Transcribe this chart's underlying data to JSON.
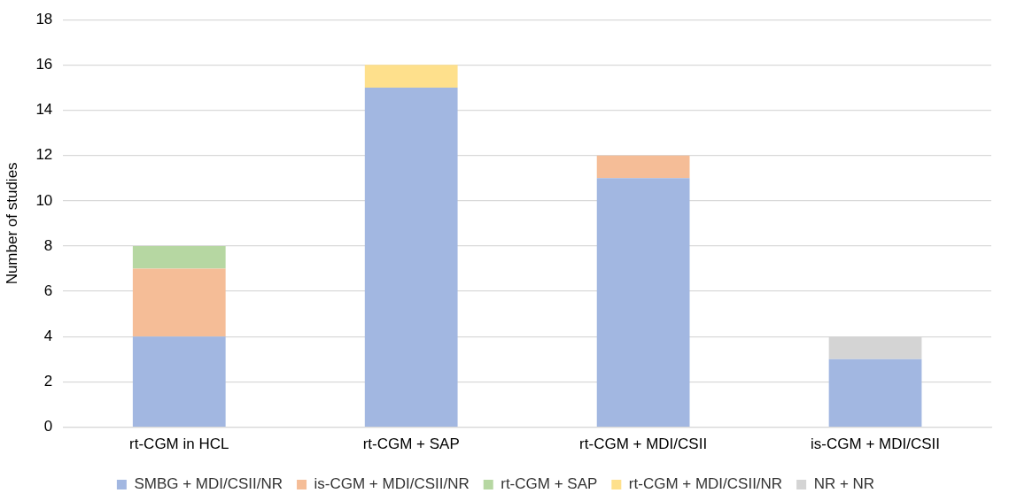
{
  "chart_data": {
    "type": "bar",
    "stacked": true,
    "ylabel": "Number of studies",
    "categories": [
      "rt-CGM in HCL",
      "rt-CGM + SAP",
      "rt-CGM + MDI/CSII",
      "is-CGM + MDI/CSII"
    ],
    "series": [
      {
        "name": "SMBG + MDI/CSII/NR",
        "color": "#a2b7e1",
        "values": [
          4,
          15,
          11,
          3
        ]
      },
      {
        "name": "is-CGM + MDI/CSII/NR",
        "color": "#f5bd97",
        "values": [
          3,
          0,
          1,
          0
        ]
      },
      {
        "name": "rt-CGM + SAP",
        "color": "#b6d7a2",
        "values": [
          1,
          0,
          0,
          0
        ]
      },
      {
        "name": "rt-CGM + MDI/CSII/NR",
        "color": "#fee08c",
        "values": [
          0,
          1,
          0,
          0
        ]
      },
      {
        "name": "NR + NR",
        "color": "#d4d4d4",
        "values": [
          0,
          0,
          0,
          1
        ]
      }
    ],
    "ylim": [
      0,
      18
    ],
    "yticks": [
      0,
      2,
      4,
      6,
      8,
      10,
      12,
      14,
      16,
      18
    ],
    "grid": "y",
    "legend": "bottom"
  }
}
